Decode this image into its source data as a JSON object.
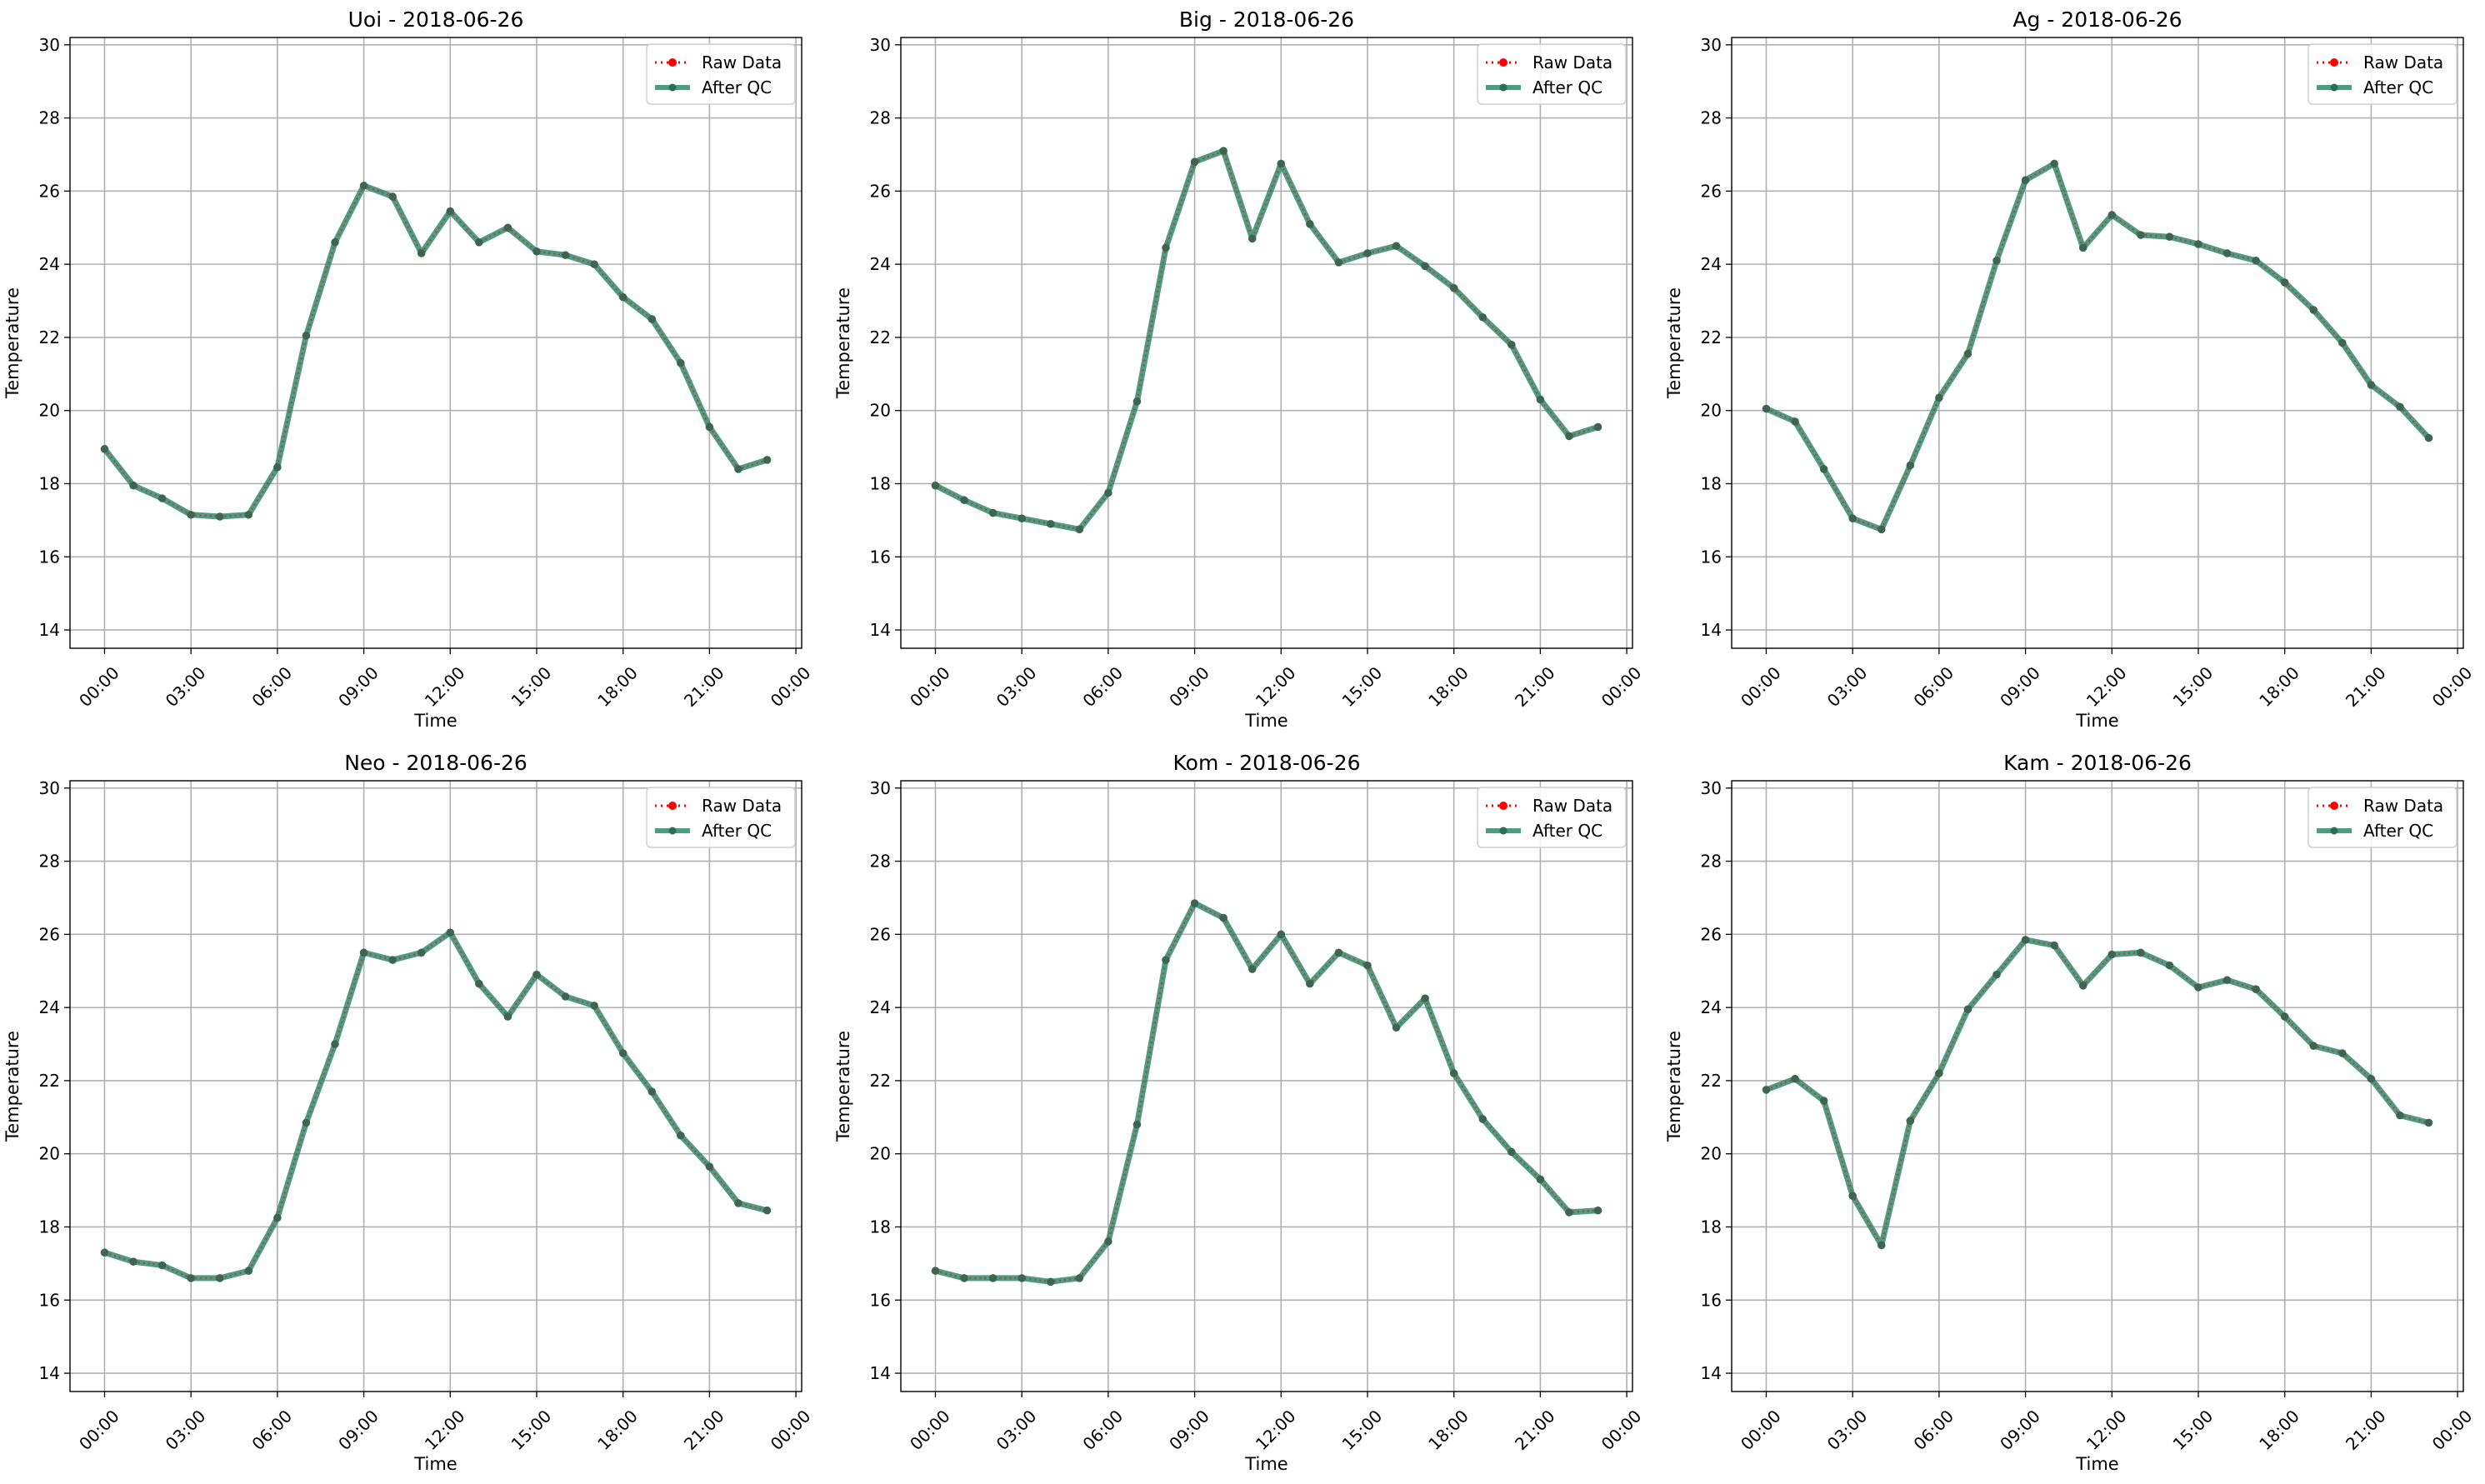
{
  "colors": {
    "raw": "#ff0000",
    "qc": "#2e8b6e",
    "qc_marker": "#2b6e58",
    "grid": "#b0b0b0",
    "legend_border": "#d0d0d0"
  },
  "chart_data": [
    {
      "type": "line",
      "title": "Uoi - 2018-06-26",
      "xlabel": "Time",
      "ylabel": "Temperature",
      "ylim": [
        13.5,
        30.2
      ],
      "yticks": [
        "14",
        "16",
        "18",
        "20",
        "22",
        "24",
        "26",
        "28",
        "30"
      ],
      "xlim_hours": [
        -1.2,
        24.2
      ],
      "xticks": [
        "00:00",
        "03:00",
        "06:00",
        "09:00",
        "12:00",
        "15:00",
        "18:00",
        "21:00",
        "00:00"
      ],
      "grid": true,
      "legend": "top-right",
      "x_hours": [
        0,
        1,
        2,
        3,
        4,
        5,
        6,
        7,
        8,
        9,
        10,
        11,
        12,
        13,
        14,
        15,
        16,
        17,
        18,
        19,
        20,
        21,
        22,
        23
      ],
      "series": [
        {
          "name": "Raw Data",
          "values": [
            18.95,
            17.95,
            17.6,
            17.15,
            17.1,
            17.15,
            18.45,
            22.05,
            24.6,
            26.15,
            25.85,
            24.3,
            25.45,
            24.6,
            25.0,
            24.35,
            24.25,
            24.0,
            23.1,
            22.5,
            21.3,
            19.55,
            18.4,
            18.65
          ]
        },
        {
          "name": "After QC",
          "values": [
            18.95,
            17.95,
            17.6,
            17.15,
            17.1,
            17.15,
            18.45,
            22.05,
            24.6,
            26.15,
            25.85,
            24.3,
            25.45,
            24.6,
            25.0,
            24.35,
            24.25,
            24.0,
            23.1,
            22.5,
            21.3,
            19.55,
            18.4,
            18.65
          ]
        }
      ]
    },
    {
      "type": "line",
      "title": "Big - 2018-06-26",
      "xlabel": "Time",
      "ylabel": "Temperature",
      "ylim": [
        13.5,
        30.2
      ],
      "yticks": [
        "14",
        "16",
        "18",
        "20",
        "22",
        "24",
        "26",
        "28",
        "30"
      ],
      "xlim_hours": [
        -1.2,
        24.2
      ],
      "xticks": [
        "00:00",
        "03:00",
        "06:00",
        "09:00",
        "12:00",
        "15:00",
        "18:00",
        "21:00",
        "00:00"
      ],
      "grid": true,
      "legend": "top-right",
      "x_hours": [
        0,
        1,
        2,
        3,
        4,
        5,
        6,
        7,
        8,
        9,
        10,
        11,
        12,
        13,
        14,
        15,
        16,
        17,
        18,
        19,
        20,
        21,
        22,
        23
      ],
      "series": [
        {
          "name": "Raw Data",
          "values": [
            17.95,
            17.55,
            17.2,
            17.05,
            16.9,
            16.75,
            17.75,
            20.25,
            24.45,
            26.8,
            27.1,
            24.7,
            26.75,
            25.1,
            24.05,
            24.3,
            24.5,
            23.95,
            23.35,
            22.55,
            21.8,
            20.3,
            19.3,
            19.55
          ]
        },
        {
          "name": "After QC",
          "values": [
            17.95,
            17.55,
            17.2,
            17.05,
            16.9,
            16.75,
            17.75,
            20.25,
            24.45,
            26.8,
            27.1,
            24.7,
            26.75,
            25.1,
            24.05,
            24.3,
            24.5,
            23.95,
            23.35,
            22.55,
            21.8,
            20.3,
            19.3,
            19.55
          ]
        }
      ]
    },
    {
      "type": "line",
      "title": "Ag - 2018-06-26",
      "xlabel": "Time",
      "ylabel": "Temperature",
      "ylim": [
        13.5,
        30.2
      ],
      "yticks": [
        "14",
        "16",
        "18",
        "20",
        "22",
        "24",
        "26",
        "28",
        "30"
      ],
      "xlim_hours": [
        -1.2,
        24.2
      ],
      "xticks": [
        "00:00",
        "03:00",
        "06:00",
        "09:00",
        "12:00",
        "15:00",
        "18:00",
        "21:00",
        "00:00"
      ],
      "grid": true,
      "legend": "top-right",
      "x_hours": [
        0,
        1,
        2,
        3,
        4,
        5,
        6,
        7,
        8,
        9,
        10,
        11,
        12,
        13,
        14,
        15,
        16,
        17,
        18,
        19,
        20,
        21,
        22,
        23
      ],
      "series": [
        {
          "name": "Raw Data",
          "values": [
            20.05,
            19.7,
            18.4,
            17.05,
            16.75,
            18.5,
            20.35,
            21.55,
            24.1,
            26.3,
            26.75,
            24.45,
            25.35,
            24.8,
            24.75,
            24.55,
            24.3,
            24.1,
            23.5,
            22.75,
            21.85,
            20.7,
            20.1,
            19.25
          ]
        },
        {
          "name": "After QC",
          "values": [
            20.05,
            19.7,
            18.4,
            17.05,
            16.75,
            18.5,
            20.35,
            21.55,
            24.1,
            26.3,
            26.75,
            24.45,
            25.35,
            24.8,
            24.75,
            24.55,
            24.3,
            24.1,
            23.5,
            22.75,
            21.85,
            20.7,
            20.1,
            19.25
          ]
        }
      ]
    },
    {
      "type": "line",
      "title": "Neo - 2018-06-26",
      "xlabel": "Time",
      "ylabel": "Temperature",
      "ylim": [
        13.5,
        30.2
      ],
      "yticks": [
        "14",
        "16",
        "18",
        "20",
        "22",
        "24",
        "26",
        "28",
        "30"
      ],
      "xlim_hours": [
        -1.2,
        24.2
      ],
      "xticks": [
        "00:00",
        "03:00",
        "06:00",
        "09:00",
        "12:00",
        "15:00",
        "18:00",
        "21:00",
        "00:00"
      ],
      "grid": true,
      "legend": "top-right",
      "x_hours": [
        0,
        1,
        2,
        3,
        4,
        5,
        6,
        7,
        8,
        9,
        10,
        11,
        12,
        13,
        14,
        15,
        16,
        17,
        18,
        19,
        20,
        21,
        22,
        23
      ],
      "series": [
        {
          "name": "Raw Data",
          "values": [
            17.3,
            17.05,
            16.95,
            16.6,
            16.6,
            16.8,
            18.25,
            20.85,
            23.0,
            25.5,
            25.3,
            25.5,
            26.05,
            24.65,
            23.75,
            24.9,
            24.3,
            24.05,
            22.75,
            21.7,
            20.5,
            19.65,
            18.65,
            18.45
          ]
        },
        {
          "name": "After QC",
          "values": [
            17.3,
            17.05,
            16.95,
            16.6,
            16.6,
            16.8,
            18.25,
            20.85,
            23.0,
            25.5,
            25.3,
            25.5,
            26.05,
            24.65,
            23.75,
            24.9,
            24.3,
            24.05,
            22.75,
            21.7,
            20.5,
            19.65,
            18.65,
            18.45
          ]
        }
      ]
    },
    {
      "type": "line",
      "title": "Kom - 2018-06-26",
      "xlabel": "Time",
      "ylabel": "Temperature",
      "ylim": [
        13.5,
        30.2
      ],
      "yticks": [
        "14",
        "16",
        "18",
        "20",
        "22",
        "24",
        "26",
        "28",
        "30"
      ],
      "xlim_hours": [
        -1.2,
        24.2
      ],
      "xticks": [
        "00:00",
        "03:00",
        "06:00",
        "09:00",
        "12:00",
        "15:00",
        "18:00",
        "21:00",
        "00:00"
      ],
      "grid": true,
      "legend": "top-right",
      "x_hours": [
        0,
        1,
        2,
        3,
        4,
        5,
        6,
        7,
        8,
        9,
        10,
        11,
        12,
        13,
        14,
        15,
        16,
        17,
        18,
        19,
        20,
        21,
        22,
        23
      ],
      "series": [
        {
          "name": "Raw Data",
          "values": [
            16.8,
            16.6,
            16.6,
            16.6,
            16.5,
            16.6,
            17.6,
            20.8,
            25.3,
            26.85,
            26.45,
            25.05,
            26.0,
            24.65,
            25.5,
            25.15,
            23.45,
            24.25,
            22.2,
            20.95,
            20.05,
            19.3,
            18.4,
            18.45
          ]
        },
        {
          "name": "After QC",
          "values": [
            16.8,
            16.6,
            16.6,
            16.6,
            16.5,
            16.6,
            17.6,
            20.8,
            25.3,
            26.85,
            26.45,
            25.05,
            26.0,
            24.65,
            25.5,
            25.15,
            23.45,
            24.25,
            22.2,
            20.95,
            20.05,
            19.3,
            18.4,
            18.45
          ]
        }
      ]
    },
    {
      "type": "line",
      "title": "Kam - 2018-06-26",
      "xlabel": "Time",
      "ylabel": "Temperature",
      "ylim": [
        13.5,
        30.2
      ],
      "yticks": [
        "14",
        "16",
        "18",
        "20",
        "22",
        "24",
        "26",
        "28",
        "30"
      ],
      "xlim_hours": [
        -1.2,
        24.2
      ],
      "xticks": [
        "00:00",
        "03:00",
        "06:00",
        "09:00",
        "12:00",
        "15:00",
        "18:00",
        "21:00",
        "00:00"
      ],
      "grid": true,
      "legend": "top-right",
      "x_hours": [
        0,
        1,
        2,
        3,
        4,
        5,
        6,
        7,
        8,
        9,
        10,
        11,
        12,
        13,
        14,
        15,
        16,
        17,
        18,
        19,
        20,
        21,
        22,
        23
      ],
      "series": [
        {
          "name": "Raw Data",
          "values": [
            21.75,
            22.05,
            21.45,
            18.85,
            17.5,
            20.9,
            22.2,
            23.95,
            24.9,
            25.85,
            25.7,
            24.6,
            25.45,
            25.5,
            25.15,
            24.55,
            24.75,
            24.5,
            23.75,
            22.95,
            22.75,
            22.05,
            21.05,
            20.85
          ]
        },
        {
          "name": "After QC",
          "values": [
            21.75,
            22.05,
            21.45,
            18.85,
            17.5,
            20.9,
            22.2,
            23.95,
            24.9,
            25.85,
            25.7,
            24.6,
            25.45,
            25.5,
            25.15,
            24.55,
            24.75,
            24.5,
            23.75,
            22.95,
            22.75,
            22.05,
            21.05,
            20.85
          ]
        }
      ]
    }
  ]
}
